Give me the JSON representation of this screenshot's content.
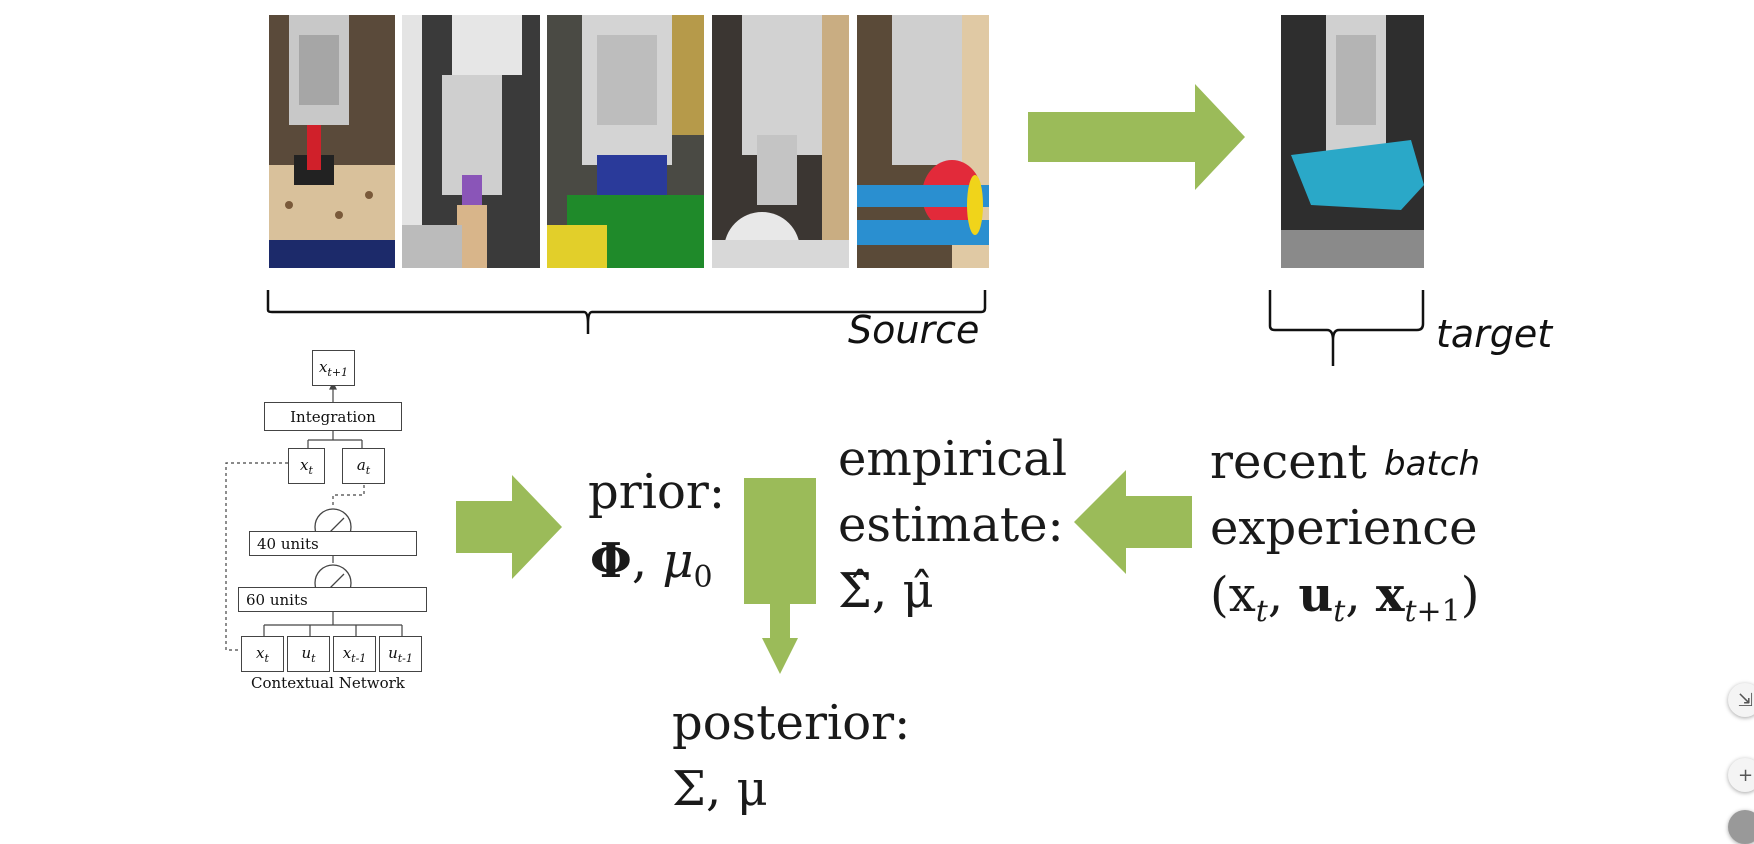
{
  "photos": [
    {
      "caption": ""
    },
    {
      "caption": ""
    },
    {
      "caption": ""
    },
    {
      "caption": ""
    },
    {
      "caption": ""
    },
    {
      "caption": ""
    }
  ],
  "handwritten": {
    "source": "Source",
    "target": "target",
    "batch": "batch"
  },
  "network": {
    "output": "x",
    "output_sub": "t+1",
    "integration": "Integration",
    "xt": "x",
    "xt_sub": "t",
    "at": "a",
    "at_sub": "t",
    "layer1": "40 units",
    "layer2": "60 units",
    "inputs": [
      {
        "v": "x",
        "s": "t"
      },
      {
        "v": "u",
        "s": "t"
      },
      {
        "v": "x",
        "s": "t-1"
      },
      {
        "v": "u",
        "s": "t-1"
      }
    ],
    "caption": "Contextual Network"
  },
  "prior": {
    "line1": "prior:",
    "line2": "Φ, μ"
  },
  "empirical": {
    "line1": "empirical",
    "line2": "estimate:",
    "line3": "Σ̂, μ̂"
  },
  "recent": {
    "line1": "recent",
    "line2": "experience",
    "line3": "(x"
  },
  "posterior": {
    "line1": "posterior:",
    "line2": "Σ, μ"
  },
  "colors": {
    "arrow": "#9bbb59",
    "ink": "#111111"
  },
  "icons": [
    "collapse-icon",
    "zoom-in-icon"
  ]
}
